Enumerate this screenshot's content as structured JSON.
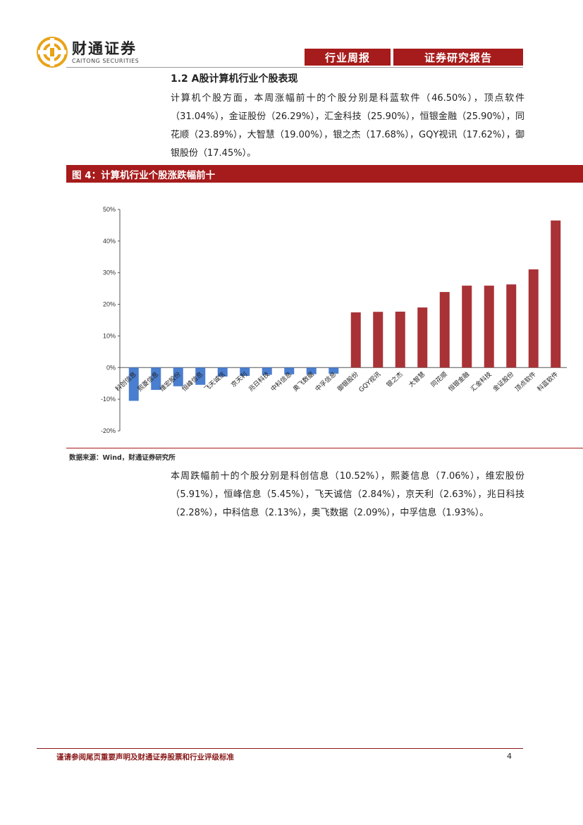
{
  "header": {
    "logo_cn": "财通证券",
    "logo_en": "CAITONG SECURITIES",
    "tag_weekly": "行业周报",
    "tag_report": "证券研究报告",
    "brand_color": "#a61b1b",
    "logo_color": "#e8a317"
  },
  "section": {
    "title": "1.2 A股计算机行业个股表现"
  },
  "para1": "计算机个股方面，本周涨幅前十的个股分别是科蓝软件（46.50%），顶点软件（31.04%），金证股份（26.29%），汇金科技（25.90%），恒银金融（25.90%），同花顺（23.89%），大智慧（19.00%），银之杰（17.68%），GQY视讯（17.62%），御银股份（17.45%）。",
  "figure": {
    "title": "图 4：计算机行业个股涨跌幅前十",
    "source": "数据来源：Wind，财通证券研究所"
  },
  "chart_data": {
    "type": "bar",
    "categories": [
      "科创信息",
      "熙菱信息",
      "维宏股份",
      "恒峰信息",
      "飞天诚信",
      "京天利",
      "兆日科技",
      "中科信息",
      "奥飞数据",
      "中孚信息",
      "御银股份",
      "GQY视讯",
      "银之杰",
      "大智慧",
      "同花顺",
      "恒银金融",
      "汇金科技",
      "金证股份",
      "顶点软件",
      "科蓝软件"
    ],
    "values": [
      -10.52,
      -7.06,
      -5.91,
      -5.45,
      -2.84,
      -2.63,
      -2.28,
      -2.13,
      -2.09,
      -1.93,
      17.45,
      17.62,
      17.68,
      19.0,
      23.89,
      25.9,
      25.9,
      26.29,
      31.04,
      46.5
    ],
    "colors": {
      "negative": "#4a7ecf",
      "positive": "#a83236"
    },
    "yticks": [
      "50%",
      "40%",
      "30%",
      "20%",
      "10%",
      "0%",
      "-10%",
      "-20%"
    ],
    "ylim": [
      -20,
      50
    ],
    "grid": false,
    "title": "",
    "xlabel": "",
    "ylabel": ""
  },
  "para2": "本周跌幅前十的个股分别是科创信息（10.52%），熙菱信息（7.06%），维宏股份（5.91%），恒峰信息（5.45%），飞天诚信（2.84%），京天利（2.63%），兆日科技（2.28%），中科信息（2.13%），奥飞数据（2.09%），中孚信息（1.93%）。",
  "footer": {
    "disclaimer": "谨请参阅尾页重要声明及财通证券股票和行业评级标准",
    "page": "4"
  }
}
